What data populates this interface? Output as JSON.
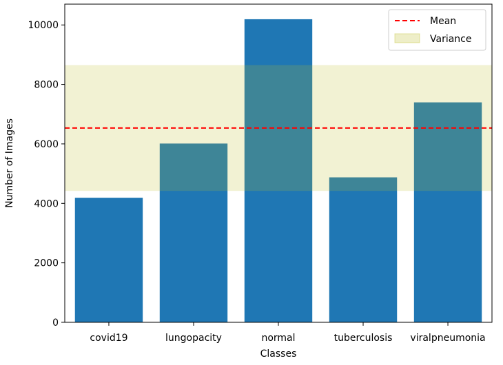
{
  "chart_data": {
    "type": "bar",
    "title": "",
    "xlabel": "Classes",
    "ylabel": "Number of Images",
    "categories": [
      "covid19",
      "lungopacity",
      "normal",
      "tuberculosis",
      "viralpneumonia"
    ],
    "values": [
      4189,
      6012,
      10192,
      4875,
      7397
    ],
    "ylim": [
      0,
      10700
    ],
    "yticks": [
      0,
      2000,
      4000,
      6000,
      8000,
      10000
    ],
    "mean": 6533,
    "variance_band": [
      4420,
      8650
    ],
    "grid": false,
    "legend": {
      "placement": "top-right",
      "entries": [
        {
          "label": "Mean",
          "style": "dashed-line",
          "color": "#ff0000"
        },
        {
          "label": "Variance",
          "style": "band",
          "color": "#bcbd22"
        }
      ]
    },
    "colors": {
      "bar": "#1f77b4",
      "mean": "#ff0000",
      "variance": "#bcbd22"
    }
  }
}
